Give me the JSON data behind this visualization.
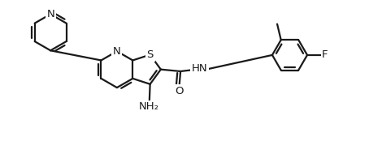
{
  "bg_color": "#ffffff",
  "line_color": "#1a1a1a",
  "lw": 1.6,
  "fs": 9.5,
  "xlim": [
    0,
    10
  ],
  "ylim": [
    0,
    4
  ]
}
